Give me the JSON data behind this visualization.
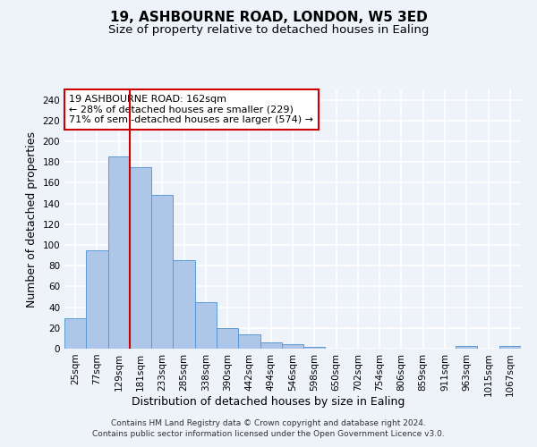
{
  "title": "19, ASHBOURNE ROAD, LONDON, W5 3ED",
  "subtitle": "Size of property relative to detached houses in Ealing",
  "xlabel": "Distribution of detached houses by size in Ealing",
  "ylabel": "Number of detached properties",
  "bar_labels": [
    "25sqm",
    "77sqm",
    "129sqm",
    "181sqm",
    "233sqm",
    "285sqm",
    "338sqm",
    "390sqm",
    "442sqm",
    "494sqm",
    "546sqm",
    "598sqm",
    "650sqm",
    "702sqm",
    "754sqm",
    "806sqm",
    "859sqm",
    "911sqm",
    "963sqm",
    "1015sqm",
    "1067sqm"
  ],
  "bar_values": [
    29,
    95,
    185,
    175,
    148,
    85,
    45,
    20,
    14,
    6,
    4,
    2,
    0,
    0,
    0,
    0,
    0,
    0,
    3,
    0,
    3
  ],
  "bar_color": "#aec6e8",
  "bar_edge_color": "#5b9bd5",
  "vline_x": 2.5,
  "vline_color": "#cc0000",
  "ylim": [
    0,
    250
  ],
  "yticks": [
    0,
    20,
    40,
    60,
    80,
    100,
    120,
    140,
    160,
    180,
    200,
    220,
    240
  ],
  "annotation_box_text": "19 ASHBOURNE ROAD: 162sqm\n← 28% of detached houses are smaller (229)\n71% of semi-detached houses are larger (574) →",
  "footer_line1": "Contains HM Land Registry data © Crown copyright and database right 2024.",
  "footer_line2": "Contains public sector information licensed under the Open Government Licence v3.0.",
  "background_color": "#eef2f9",
  "plot_bg_color": "#eef2f9",
  "grid_color": "#ffffff",
  "title_fontsize": 11,
  "subtitle_fontsize": 9.5,
  "axis_label_fontsize": 9,
  "tick_fontsize": 7.5,
  "annotation_fontsize": 8,
  "footer_fontsize": 6.5
}
